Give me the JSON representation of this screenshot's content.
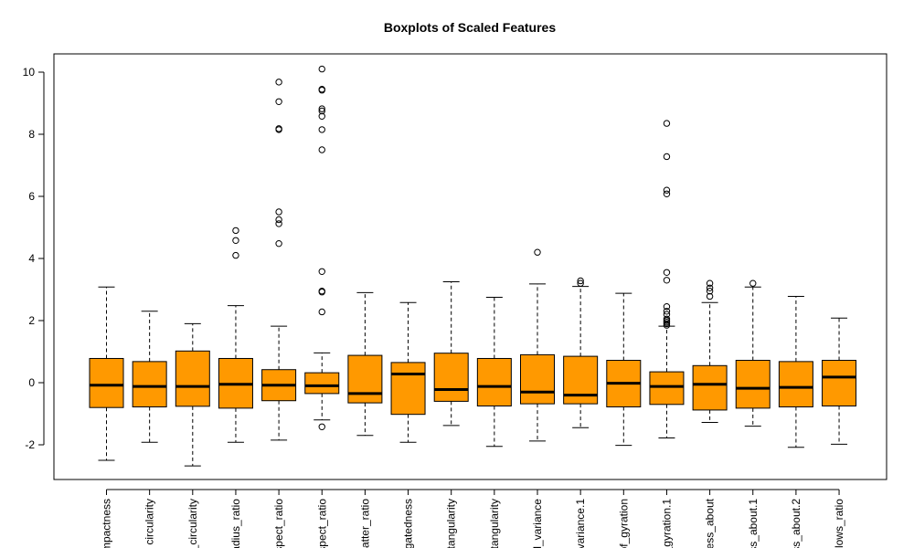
{
  "chart_data": {
    "type": "boxplot",
    "title": "Boxplots of Scaled Features",
    "xlabel": "",
    "ylabel": "",
    "ylim": [
      -3.2,
      10.6
    ],
    "yticks": [
      -2,
      0,
      2,
      4,
      6,
      8,
      10
    ],
    "grid": false,
    "box_fill": "#ff9900",
    "median_color": "#000000",
    "categories": [
      "mpactness",
      "circularity",
      "_circularity",
      "adius_ratio",
      "spect_ratio",
      "spect_ratio",
      "catter_ratio",
      "ngatedness",
      "ctangularity",
      "ctangularity",
      "d_variance",
      "_variance.1",
      "of_gyration",
      "_gyration.1",
      "ness_about",
      "ss_about.1",
      "ss_about.2",
      "llows_ratio"
    ],
    "boxes": [
      {
        "whisker_low": -2.5,
        "q1": -0.8,
        "median": -0.08,
        "q3": 0.78,
        "whisker_high": 3.08,
        "outliers": []
      },
      {
        "whisker_low": -1.92,
        "q1": -0.78,
        "median": -0.12,
        "q3": 0.68,
        "whisker_high": 2.3,
        "outliers": []
      },
      {
        "whisker_low": -2.68,
        "q1": -0.76,
        "median": -0.12,
        "q3": 1.02,
        "whisker_high": 1.9,
        "outliers": []
      },
      {
        "whisker_low": -1.92,
        "q1": -0.82,
        "median": -0.05,
        "q3": 0.78,
        "whisker_high": 2.48,
        "outliers": [
          4.1,
          4.58,
          4.9
        ]
      },
      {
        "whisker_low": -1.85,
        "q1": -0.58,
        "median": -0.08,
        "q3": 0.42,
        "whisker_high": 1.82,
        "outliers": [
          4.48,
          5.12,
          5.25,
          5.5,
          8.15,
          8.18,
          9.05,
          9.68
        ]
      },
      {
        "whisker_low": -1.2,
        "q1": -0.35,
        "median": -0.1,
        "q3": 0.32,
        "whisker_high": 0.96,
        "outliers": [
          -1.42,
          2.28,
          2.92,
          2.95,
          3.58,
          7.5,
          8.15,
          8.58,
          8.75,
          8.82,
          9.42,
          9.45,
          10.1
        ]
      },
      {
        "whisker_low": -1.7,
        "q1": -0.65,
        "median": -0.35,
        "q3": 0.88,
        "whisker_high": 2.9,
        "outliers": []
      },
      {
        "whisker_low": -1.92,
        "q1": -1.02,
        "median": 0.28,
        "q3": 0.65,
        "whisker_high": 2.58,
        "outliers": []
      },
      {
        "whisker_low": -1.38,
        "q1": -0.6,
        "median": -0.22,
        "q3": 0.95,
        "whisker_high": 3.25,
        "outliers": []
      },
      {
        "whisker_low": -2.05,
        "q1": -0.75,
        "median": -0.12,
        "q3": 0.78,
        "whisker_high": 2.75,
        "outliers": []
      },
      {
        "whisker_low": -1.88,
        "q1": -0.68,
        "median": -0.3,
        "q3": 0.9,
        "whisker_high": 3.18,
        "outliers": [
          4.2
        ]
      },
      {
        "whisker_low": -1.45,
        "q1": -0.68,
        "median": -0.4,
        "q3": 0.85,
        "whisker_high": 3.1,
        "outliers": [
          3.2,
          3.28
        ]
      },
      {
        "whisker_low": -2.02,
        "q1": -0.78,
        "median": -0.02,
        "q3": 0.72,
        "whisker_high": 2.88,
        "outliers": []
      },
      {
        "whisker_low": -1.78,
        "q1": -0.7,
        "median": -0.12,
        "q3": 0.35,
        "whisker_high": 1.82,
        "outliers": [
          1.85,
          1.9,
          1.95,
          2.0,
          2.05,
          2.2,
          2.3,
          2.45,
          3.3,
          3.55,
          6.08,
          6.2,
          7.28,
          8.35
        ]
      },
      {
        "whisker_low": -1.28,
        "q1": -0.88,
        "median": -0.05,
        "q3": 0.55,
        "whisker_high": 2.58,
        "outliers": [
          2.78,
          2.95,
          3.05,
          3.2
        ]
      },
      {
        "whisker_low": -1.4,
        "q1": -0.82,
        "median": -0.18,
        "q3": 0.72,
        "whisker_high": 3.08,
        "outliers": [
          3.2
        ]
      },
      {
        "whisker_low": -2.08,
        "q1": -0.78,
        "median": -0.15,
        "q3": 0.68,
        "whisker_high": 2.78,
        "outliers": []
      },
      {
        "whisker_low": -1.98,
        "q1": -0.75,
        "median": 0.18,
        "q3": 0.72,
        "whisker_high": 2.08,
        "outliers": []
      }
    ]
  }
}
